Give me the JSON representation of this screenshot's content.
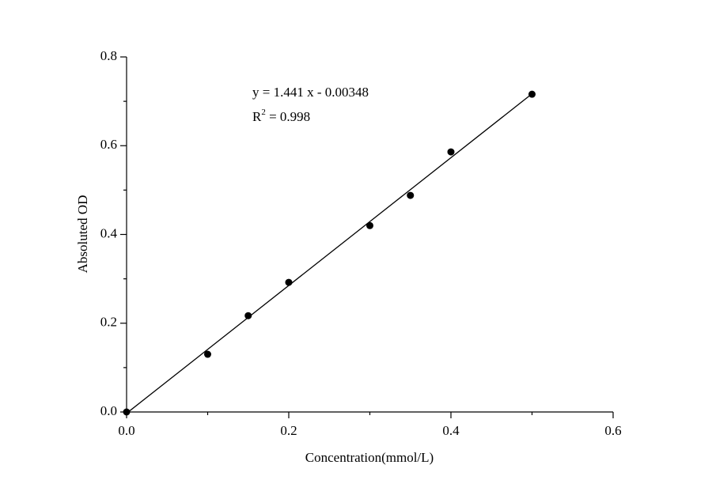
{
  "chart_data": {
    "type": "scatter",
    "x_label": "Concentration(mmol/L)",
    "y_label": "Absoluted OD",
    "annotation": {
      "equation": "y = 1.441 x - 0.00348",
      "r2_base": "R",
      "r2_sup": "2",
      "r2_text": " = 0.998"
    },
    "x": [
      0,
      0.1,
      0.15,
      0.2,
      0.3,
      0.35,
      0.4,
      0.5
    ],
    "values": [
      0,
      0.13,
      0.217,
      0.292,
      0.42,
      0.488,
      0.586,
      0.716
    ],
    "color": "#000000",
    "fit_line": {
      "x": [
        0,
        0.5
      ],
      "y": [
        -0.003,
        0.717
      ]
    },
    "xlim": [
      0,
      0.6
    ],
    "ylim": [
      0,
      0.8
    ],
    "xticks": [
      {
        "value": 0,
        "label": "0.0"
      },
      0.2,
      0.4,
      0.6
    ],
    "yticks": [
      {
        "value": 0,
        "label": "0.0"
      },
      0.2,
      0.4,
      0.6,
      0.8
    ],
    "xminorticks": [
      0.1,
      0.3,
      0.5
    ],
    "yminorticks": [
      0.1,
      0.3,
      0.5,
      0.7
    ]
  }
}
